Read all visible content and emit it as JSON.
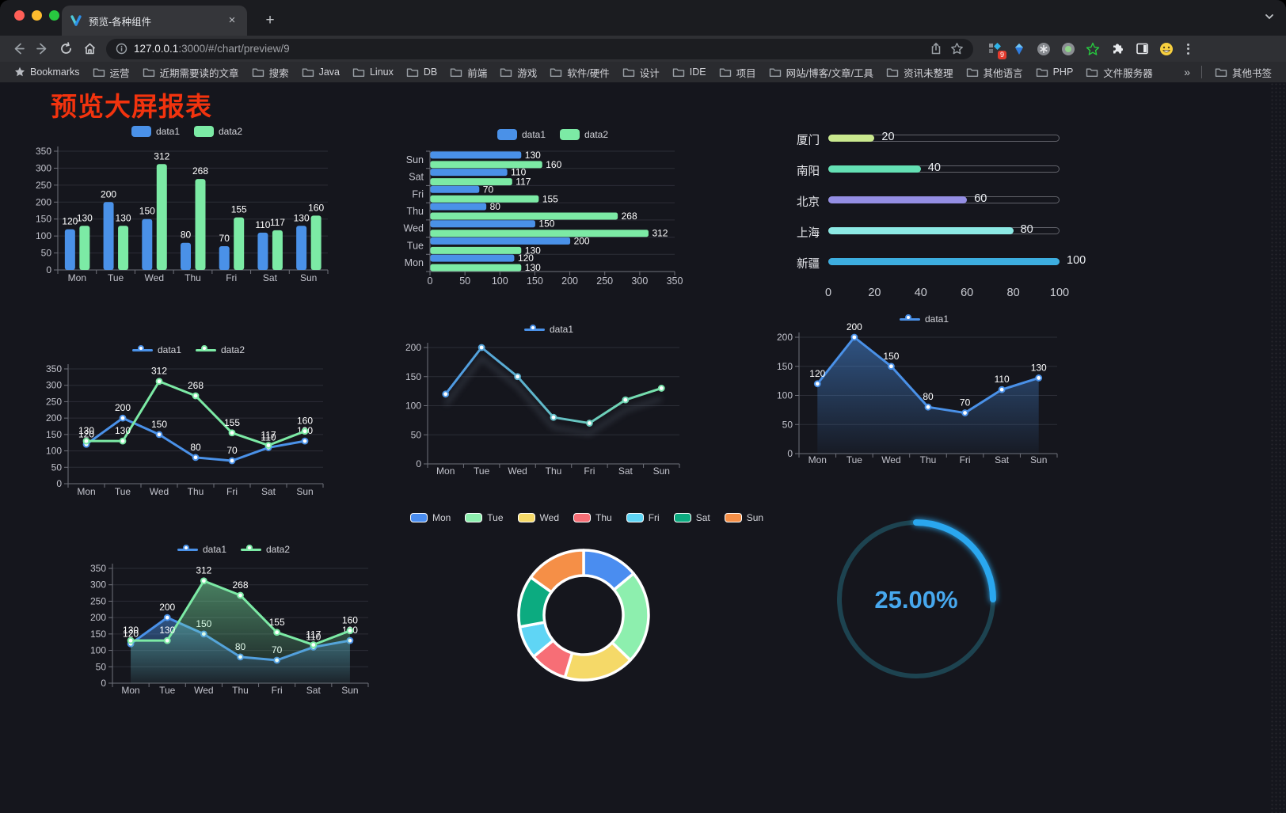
{
  "browser": {
    "tab": {
      "title": "预览-各种组件",
      "close_glyph": "×"
    },
    "new_tab_glyph": "+",
    "url": {
      "host": "127.0.0.1",
      "rest": ":3000/#/chart/preview/9"
    },
    "extension_badge": "9",
    "bookmarks_bar": {
      "bookmarks_label": "Bookmarks",
      "folders": [
        "运营",
        "近期需要读的文章",
        "搜索",
        "Java",
        "Linux",
        "DB",
        "前端",
        "游戏",
        "软件/硬件",
        "设计",
        "IDE",
        "项目",
        "网站/博客/文章/工具",
        "资讯未整理",
        "其他语言",
        "PHP",
        "文件服务器"
      ],
      "overflow_glyph": "»",
      "other_bookmarks": "其他书签"
    }
  },
  "page": {
    "title": "预览大屏报表",
    "title_color": "#f2330e",
    "background": "#15161d"
  },
  "chart_data": [
    {
      "id": "bar-vertical",
      "type": "bar",
      "legend": [
        "data1",
        "data2"
      ],
      "categories": [
        "Mon",
        "Tue",
        "Wed",
        "Thu",
        "Fri",
        "Sat",
        "Sun"
      ],
      "series": [
        {
          "name": "data1",
          "color": "#4a91e8",
          "values": [
            120,
            200,
            150,
            80,
            70,
            110,
            130
          ]
        },
        {
          "name": "data2",
          "color": "#7ceaa5",
          "values": [
            130,
            130,
            312,
            268,
            155,
            117,
            160
          ]
        }
      ],
      "ylim": [
        0,
        350
      ],
      "yticks": [
        0,
        50,
        100,
        150,
        200,
        250,
        300,
        350
      ],
      "value_labels": true,
      "grid": true
    },
    {
      "id": "bar-horizontal",
      "type": "bar",
      "orientation": "horizontal",
      "legend": [
        "data1",
        "data2"
      ],
      "categories": [
        "Mon",
        "Tue",
        "Wed",
        "Thu",
        "Fri",
        "Sat",
        "Sun"
      ],
      "series": [
        {
          "name": "data1",
          "color": "#4a91e8",
          "values": [
            120,
            200,
            150,
            80,
            70,
            110,
            130
          ]
        },
        {
          "name": "data2",
          "color": "#7ceaa5",
          "values": [
            130,
            130,
            312,
            268,
            155,
            117,
            160
          ]
        }
      ],
      "xlim": [
        0,
        350
      ],
      "xticks": [
        0,
        50,
        100,
        150,
        200,
        250,
        300,
        350
      ],
      "value_labels": true,
      "grid": true
    },
    {
      "id": "city-progress",
      "type": "bar",
      "style": "capsule-progress",
      "max": 100,
      "xticks": [
        0,
        20,
        40,
        60,
        80,
        100
      ],
      "items": [
        {
          "label": "厦门",
          "value": 20,
          "color": "#c9e88e"
        },
        {
          "label": "南阳",
          "value": 40,
          "color": "#64e0b4"
        },
        {
          "label": "北京",
          "value": 60,
          "color": "#948ee4"
        },
        {
          "label": "上海",
          "value": 80,
          "color": "#8ce9e4"
        },
        {
          "label": "新疆",
          "value": 100,
          "color": "#3daee0"
        }
      ]
    },
    {
      "id": "line-dual",
      "type": "line",
      "legend": [
        "data1",
        "data2"
      ],
      "categories": [
        "Mon",
        "Tue",
        "Wed",
        "Thu",
        "Fri",
        "Sat",
        "Sun"
      ],
      "series": [
        {
          "name": "data1",
          "color": "#4a91e8",
          "values": [
            120,
            200,
            150,
            80,
            70,
            110,
            130
          ]
        },
        {
          "name": "data2",
          "color": "#7ceaa5",
          "values": [
            130,
            130,
            312,
            268,
            155,
            117,
            160
          ]
        }
      ],
      "ylim": [
        0,
        350
      ],
      "yticks": [
        0,
        50,
        100,
        150,
        200,
        250,
        300,
        350
      ],
      "value_labels": true,
      "grid": true
    },
    {
      "id": "line-gradient",
      "type": "line",
      "legend": [
        "data1"
      ],
      "categories": [
        "Mon",
        "Tue",
        "Wed",
        "Thu",
        "Fri",
        "Sat",
        "Sun"
      ],
      "series": [
        {
          "name": "data1",
          "color": "#4a91e8",
          "gradient": [
            "#4a91e8",
            "#7ceaa5"
          ],
          "shadow": true,
          "values": [
            120,
            200,
            150,
            80,
            70,
            110,
            130
          ]
        }
      ],
      "ylim": [
        0,
        200
      ],
      "yticks": [
        0,
        50,
        100,
        150,
        200
      ],
      "value_labels": false,
      "grid": true
    },
    {
      "id": "line-area",
      "type": "area",
      "legend": [
        "data1"
      ],
      "categories": [
        "Mon",
        "Tue",
        "Wed",
        "Thu",
        "Fri",
        "Sat",
        "Sun"
      ],
      "series": [
        {
          "name": "data1",
          "color": "#4a91e8",
          "area": true,
          "values": [
            120,
            200,
            150,
            80,
            70,
            110,
            130
          ]
        }
      ],
      "ylim": [
        0,
        200
      ],
      "yticks": [
        0,
        50,
        100,
        150,
        200
      ],
      "value_labels": true,
      "grid": true
    },
    {
      "id": "line-area-dual",
      "type": "area",
      "legend": [
        "data1",
        "data2"
      ],
      "categories": [
        "Mon",
        "Tue",
        "Wed",
        "Thu",
        "Fri",
        "Sat",
        "Sun"
      ],
      "series": [
        {
          "name": "data1",
          "color": "#4a91e8",
          "area": true,
          "values": [
            120,
            200,
            150,
            80,
            70,
            110,
            130
          ]
        },
        {
          "name": "data2",
          "color": "#7ceaa5",
          "area": true,
          "values": [
            130,
            130,
            312,
            268,
            155,
            117,
            160
          ]
        }
      ],
      "ylim": [
        0,
        350
      ],
      "yticks": [
        0,
        50,
        100,
        150,
        200,
        250,
        300,
        350
      ],
      "value_labels": true,
      "grid": true
    },
    {
      "id": "weekday-donut",
      "type": "pie",
      "legend": [
        "Mon",
        "Tue",
        "Wed",
        "Thu",
        "Fri",
        "Sat",
        "Sun"
      ],
      "labels": [
        "Mon",
        "Tue",
        "Wed",
        "Thu",
        "Fri",
        "Sat",
        "Sun"
      ],
      "values": [
        120,
        200,
        150,
        80,
        70,
        110,
        130
      ],
      "colors": [
        "#4a8df0",
        "#8defae",
        "#f5d968",
        "#f76e76",
        "#5fd5f5",
        "#0cab80",
        "#f58f47"
      ],
      "inner_radius_ratio": 0.61,
      "border_color": "#ffffff"
    },
    {
      "id": "percent-gauge",
      "type": "gauge",
      "label": "25.00%",
      "value": 25,
      "max": 100,
      "color": "#2aa7ef",
      "track_color": "#1d4350",
      "text_color": "#47a8ee"
    }
  ]
}
